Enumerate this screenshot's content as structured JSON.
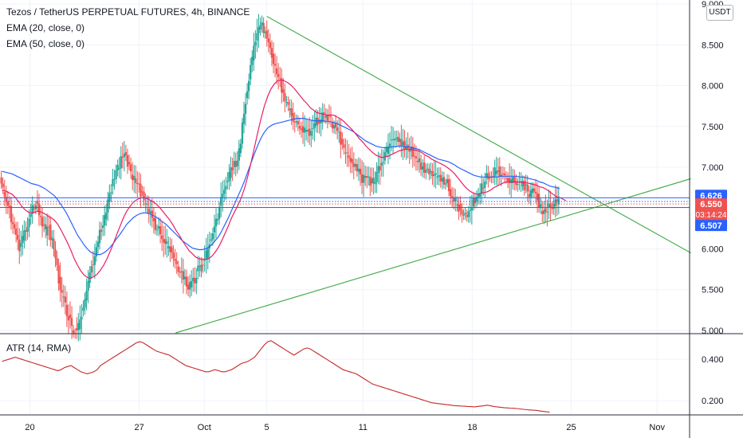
{
  "title": "Tezos / TetherUS PERPETUAL FUTURES, 4h, BINANCE",
  "indicators": [
    "EMA (20, close, 0)",
    "EMA (50, close, 0)"
  ],
  "atr_label": "ATR (14, RMA)",
  "unit_button": "USDT",
  "price_tags": {
    "upper": {
      "label": "6.626",
      "value": 6.626,
      "color": "#2962ff"
    },
    "last": {
      "label": "6.550",
      "countdown": "03:14:24",
      "value": 6.55,
      "color": "#ef5350"
    },
    "lower": {
      "label": "6.507",
      "value": 6.507,
      "color": "#2962ff"
    }
  },
  "colors": {
    "up": "#26a69a",
    "down": "#ef5350",
    "ema20": "#e91e63",
    "ema50": "#2962ff",
    "trend": "#4caf50",
    "atr": "#c62828",
    "axis_text": "#131722"
  },
  "chart_data": [
    {
      "type": "candlestick",
      "title": "Tezos / TetherUS PERPETUAL FUTURES, 4h, BINANCE",
      "x_ticks": [
        "20",
        "27",
        "Oct",
        "5",
        "11",
        "18",
        "25",
        "Nov"
      ],
      "x_tick_index": [
        11,
        53,
        78,
        102,
        139,
        181,
        219,
        252
      ],
      "y_ticks": [
        "5.000",
        "5.500",
        "6.000",
        "6.500",
        "7.000",
        "7.500",
        "8.000",
        "8.500",
        "9.000"
      ],
      "ylim": [
        4.97,
        9.05
      ],
      "n_slots": 265,
      "last_index": 220,
      "close": [
        6.88,
        6.72,
        6.55,
        6.5,
        6.3,
        6.17,
        6.02,
        6.15,
        6.2,
        6.38,
        6.5,
        6.55,
        6.42,
        6.3,
        6.19,
        6.25,
        6.1,
        5.85,
        5.62,
        5.45,
        5.3,
        5.15,
        5.03,
        5.0,
        5.05,
        5.2,
        5.4,
        5.6,
        5.8,
        5.92,
        6.08,
        6.25,
        6.4,
        6.56,
        6.72,
        6.88,
        7.0,
        7.1,
        7.15,
        7.05,
        6.95,
        6.86,
        6.77,
        6.68,
        6.6,
        6.5,
        6.42,
        6.34,
        6.25,
        6.18,
        6.12,
        6.05,
        5.98,
        5.9,
        5.8,
        5.7,
        5.62,
        5.56,
        5.55,
        5.6,
        5.68,
        5.76,
        5.84,
        5.93,
        6.05,
        6.2,
        6.36,
        6.52,
        6.68,
        6.82,
        6.92,
        6.98,
        7.03,
        7.2,
        7.5,
        7.8,
        8.1,
        8.35,
        8.55,
        8.7,
        8.75,
        8.65,
        8.52,
        8.38,
        8.25,
        8.1,
        7.95,
        7.83,
        7.72,
        7.62,
        7.54,
        7.49,
        7.47,
        7.45,
        7.44,
        7.47,
        7.53,
        7.57,
        7.6,
        7.62,
        7.6,
        7.58,
        7.5,
        7.42,
        7.32,
        7.22,
        7.13,
        7.06,
        7.0,
        6.94,
        6.9,
        6.86,
        6.83,
        6.82,
        6.84,
        6.9,
        6.98,
        7.1,
        7.2,
        7.28,
        7.32,
        7.35,
        7.33,
        7.3,
        7.27,
        7.22,
        7.17,
        7.12,
        7.07,
        7.02,
        6.99,
        6.96,
        6.94,
        6.92,
        6.9,
        6.88,
        6.82,
        6.75,
        6.67,
        6.58,
        6.5,
        6.45,
        6.44,
        6.46,
        6.52,
        6.6,
        6.68,
        6.76,
        6.83,
        6.88,
        6.92,
        6.95,
        6.96,
        6.94,
        6.9,
        6.87,
        6.85,
        6.83,
        6.83,
        6.8,
        6.75,
        6.7,
        6.68,
        6.66,
        6.63,
        6.5,
        6.45,
        6.48,
        6.54,
        6.56,
        6.55
      ],
      "ema20": [
        6.72,
        6.71,
        6.69,
        6.67,
        6.63,
        6.58,
        6.52,
        6.48,
        6.45,
        6.44,
        6.45,
        6.46,
        6.45,
        6.43,
        6.4,
        6.38,
        6.35,
        6.3,
        6.23,
        6.15,
        6.07,
        5.98,
        5.88,
        5.8,
        5.73,
        5.68,
        5.65,
        5.64,
        5.66,
        5.69,
        5.74,
        5.8,
        5.88,
        5.97,
        6.07,
        6.18,
        6.28,
        6.38,
        6.46,
        6.52,
        6.57,
        6.6,
        6.62,
        6.63,
        6.62,
        6.6,
        6.58,
        6.55,
        6.51,
        6.46,
        6.41,
        6.36,
        6.3,
        6.23,
        6.17,
        6.1,
        6.04,
        5.98,
        5.94,
        5.9,
        5.88,
        5.87,
        5.87,
        5.88,
        5.91,
        5.96,
        6.02,
        6.1,
        6.19,
        6.28,
        6.38,
        6.46,
        6.54,
        6.63,
        6.75,
        6.9,
        7.07,
        7.25,
        7.43,
        7.6,
        7.75,
        7.87,
        7.96,
        8.02,
        8.06,
        8.07,
        8.06,
        8.04,
        8.01,
        7.97,
        7.92,
        7.87,
        7.82,
        7.78,
        7.73,
        7.7,
        7.67,
        7.66,
        7.65,
        7.64,
        7.64,
        7.64,
        7.62,
        7.6,
        7.57,
        7.53,
        7.49,
        7.45,
        7.4,
        7.35,
        7.31,
        7.26,
        7.22,
        7.18,
        7.15,
        7.13,
        7.12,
        7.13,
        7.14,
        7.16,
        7.18,
        7.2,
        7.21,
        7.22,
        7.22,
        7.22,
        7.21,
        7.2,
        7.18,
        7.15,
        7.13,
        7.1,
        7.08,
        7.06,
        7.04,
        7.02,
        6.99,
        6.96,
        6.92,
        6.87,
        6.82,
        6.77,
        6.73,
        6.7,
        6.68,
        6.67,
        6.68,
        6.69,
        6.7,
        6.72,
        6.75,
        6.77,
        6.79,
        6.81,
        6.82,
        6.82,
        6.82,
        6.82,
        6.82,
        6.81,
        6.81,
        6.8,
        6.79,
        6.78,
        6.76,
        6.75,
        6.73,
        6.7,
        6.67,
        6.64,
        6.63,
        6.61,
        6.59
      ],
      "ema50": [
        6.95,
        6.94,
        6.93,
        6.92,
        6.9,
        6.88,
        6.86,
        6.84,
        6.82,
        6.8,
        6.79,
        6.78,
        6.76,
        6.74,
        6.71,
        6.68,
        6.65,
        6.6,
        6.54,
        6.48,
        6.41,
        6.33,
        6.25,
        6.17,
        6.11,
        6.05,
        6.0,
        5.96,
        5.94,
        5.93,
        5.93,
        5.95,
        5.98,
        6.02,
        6.07,
        6.13,
        6.18,
        6.24,
        6.3,
        6.34,
        6.38,
        6.41,
        6.43,
        6.44,
        6.44,
        6.43,
        6.41,
        6.39,
        6.36,
        6.33,
        6.3,
        6.26,
        6.22,
        6.18,
        6.14,
        6.1,
        6.07,
        6.04,
        6.01,
        6.0,
        5.99,
        5.99,
        6.0,
        6.02,
        6.05,
        6.1,
        6.15,
        6.22,
        6.3,
        6.38,
        6.47,
        6.56,
        6.65,
        6.74,
        6.84,
        6.95,
        7.06,
        7.17,
        7.27,
        7.36,
        7.43,
        7.48,
        7.51,
        7.53,
        7.54,
        7.55,
        7.56,
        7.57,
        7.58,
        7.59,
        7.6,
        7.6,
        7.6,
        7.59,
        7.58,
        7.57,
        7.57,
        7.57,
        7.57,
        7.56,
        7.56,
        7.55,
        7.54,
        7.52,
        7.5,
        7.48,
        7.46,
        7.44,
        7.41,
        7.38,
        7.35,
        7.32,
        7.3,
        7.28,
        7.26,
        7.25,
        7.24,
        7.24,
        7.24,
        7.25,
        7.25,
        7.26,
        7.26,
        7.25,
        7.25,
        7.24,
        7.23,
        7.22,
        7.2,
        7.18,
        7.16,
        7.14,
        7.12,
        7.1,
        7.09,
        7.08,
        7.07,
        7.05,
        7.03,
        7.0,
        6.98,
        6.96,
        6.94,
        6.92,
        6.9,
        6.89,
        6.88,
        6.88,
        6.88,
        6.88,
        6.88,
        6.88,
        6.89,
        6.89,
        6.89,
        6.89,
        6.89,
        6.89,
        6.88,
        6.88,
        6.87,
        6.86,
        6.85,
        6.84,
        6.82,
        6.81,
        6.79,
        6.77,
        6.76,
        6.75,
        6.74
      ],
      "trendlines": [
        {
          "name": "descending-trendline",
          "from": [
            102,
            8.85
          ],
          "to": [
            265,
            5.95
          ]
        },
        {
          "name": "ascending-trendline",
          "from": [
            67,
            4.97
          ],
          "to": [
            265,
            6.86
          ]
        }
      ],
      "horizontal_lines": [
        6.626,
        6.507
      ],
      "dotted_lines": [
        6.55,
        6.58
      ],
      "atr": {
        "label": "ATR (14, RMA)",
        "y_ticks": [
          "0.200",
          "0.400"
        ],
        "ylim": [
          0.135,
          0.52
        ],
        "values": [
          0.39,
          0.395,
          0.4,
          0.405,
          0.41,
          0.405,
          0.4,
          0.395,
          0.39,
          0.385,
          0.38,
          0.375,
          0.37,
          0.365,
          0.36,
          0.355,
          0.35,
          0.345,
          0.35,
          0.36,
          0.365,
          0.37,
          0.36,
          0.35,
          0.34,
          0.335,
          0.33,
          0.335,
          0.34,
          0.35,
          0.37,
          0.38,
          0.39,
          0.4,
          0.41,
          0.42,
          0.43,
          0.44,
          0.45,
          0.46,
          0.47,
          0.48,
          0.485,
          0.48,
          0.47,
          0.46,
          0.45,
          0.44,
          0.435,
          0.43,
          0.425,
          0.42,
          0.41,
          0.4,
          0.39,
          0.38,
          0.37,
          0.365,
          0.36,
          0.355,
          0.35,
          0.345,
          0.34,
          0.34,
          0.345,
          0.35,
          0.345,
          0.34,
          0.34,
          0.345,
          0.35,
          0.36,
          0.37,
          0.38,
          0.385,
          0.39,
          0.4,
          0.41,
          0.43,
          0.45,
          0.47,
          0.485,
          0.49,
          0.48,
          0.47,
          0.46,
          0.45,
          0.44,
          0.43,
          0.42,
          0.43,
          0.44,
          0.45,
          0.455,
          0.45,
          0.44,
          0.43,
          0.42,
          0.41,
          0.4,
          0.39,
          0.38,
          0.37,
          0.36,
          0.35,
          0.345,
          0.34,
          0.335,
          0.33,
          0.32,
          0.31,
          0.3,
          0.29,
          0.28,
          0.275,
          0.27,
          0.265,
          0.26,
          0.255,
          0.25,
          0.245,
          0.24,
          0.235,
          0.23,
          0.225,
          0.22,
          0.215,
          0.21,
          0.205,
          0.2,
          0.195,
          0.19,
          0.188,
          0.186,
          0.184,
          0.182,
          0.18,
          0.178,
          0.176,
          0.175,
          0.174,
          0.173,
          0.172,
          0.171,
          0.17,
          0.172,
          0.174,
          0.176,
          0.178,
          0.175,
          0.172,
          0.17,
          0.168,
          0.166,
          0.165,
          0.164,
          0.163,
          0.162,
          0.16,
          0.158,
          0.156,
          0.155,
          0.154,
          0.153,
          0.15,
          0.148,
          0.146,
          0.145
        ]
      }
    }
  ]
}
